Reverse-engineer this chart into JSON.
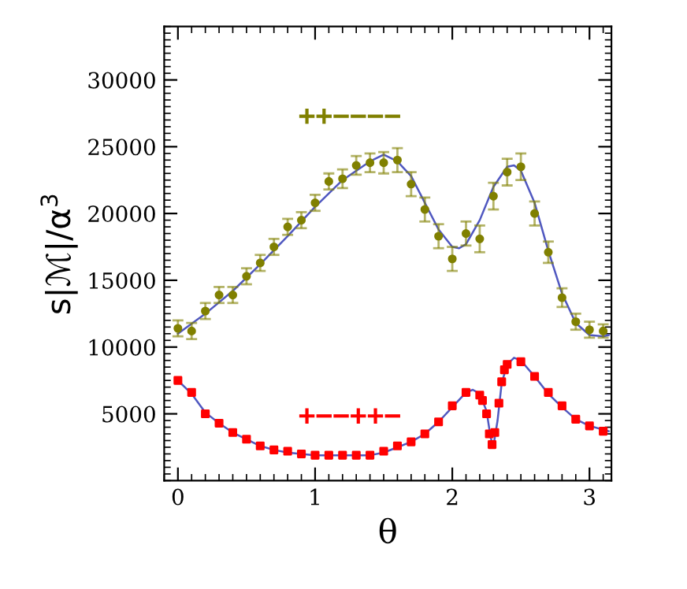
{
  "chart_data": {
    "type": "scatter",
    "xlabel": "θ",
    "ylabel": "s|ℳ|/α$^{3}$",
    "xlim": [
      -0.1,
      3.16
    ],
    "xticks": [
      0,
      1,
      2,
      3
    ],
    "ylim": [
      0,
      34000
    ],
    "yticks": [
      5000,
      10000,
      15000,
      20000,
      25000,
      30000
    ],
    "grid": false,
    "legend": false,
    "annotations": [
      "++−−−−",
      "+−−++−"
    ],
    "series": [
      {
        "color": "#808000",
        "marker": "circle",
        "x": [
          0,
          0.1,
          0.2,
          0.3,
          0.4,
          0.5,
          0.6,
          0.7,
          0.8,
          0.9,
          1.0,
          1.1,
          1.2,
          1.3,
          1.4,
          1.5,
          1.6,
          1.7,
          1.8,
          1.9,
          2.0,
          2.1,
          2.2,
          2.3,
          2.4,
          2.5,
          2.6,
          2.7,
          2.8,
          2.9,
          3.0,
          3.1
        ],
        "values": [
          11400,
          11200,
          12700,
          13900,
          13900,
          15300,
          16300,
          17500,
          19000,
          19500,
          20800,
          22400,
          22600,
          23600,
          23800,
          23800,
          24000,
          22200,
          20300,
          18300,
          16600,
          18500,
          18100,
          21300,
          23100,
          23500,
          20000,
          17100,
          13700,
          11900,
          11300,
          11200
        ],
        "errors": [
          600,
          600,
          600,
          600,
          600,
          600,
          600,
          600,
          600,
          600,
          600,
          600,
          700,
          700,
          700,
          800,
          900,
          900,
          900,
          900,
          900,
          900,
          1000,
          1000,
          1000,
          1000,
          900,
          800,
          700,
          600,
          600,
          500
        ]
      },
      {
        "color": "#ff0000",
        "marker": "square",
        "x": [
          0,
          0.1,
          0.2,
          0.3,
          0.4,
          0.5,
          0.6,
          0.7,
          0.8,
          0.9,
          1.0,
          1.1,
          1.2,
          1.3,
          1.4,
          1.5,
          1.6,
          1.7,
          1.8,
          1.9,
          2.0,
          2.1,
          2.2,
          2.22,
          2.25,
          2.27,
          2.29,
          2.31,
          2.34,
          2.36,
          2.38,
          2.4,
          2.5,
          2.6,
          2.7,
          2.8,
          2.9,
          3.0,
          3.1
        ],
        "values": [
          7500,
          6600,
          5000,
          4300,
          3600,
          3100,
          2600,
          2300,
          2200,
          2000,
          1900,
          1900,
          1900,
          1900,
          1900,
          2200,
          2600,
          2900,
          3500,
          4400,
          5600,
          6600,
          6400,
          6000,
          5000,
          3500,
          2700,
          3600,
          5800,
          7400,
          8300,
          8700,
          8900,
          7800,
          6600,
          5600,
          4600,
          4100,
          3700
        ]
      },
      {
        "type": "line",
        "color": "#5058c0",
        "marker": "none",
        "x": [
          0,
          0.2,
          0.4,
          0.6,
          0.8,
          1.0,
          1.2,
          1.4,
          1.5,
          1.6,
          1.7,
          1.8,
          1.9,
          2.0,
          2.05,
          2.1,
          2.2,
          2.3,
          2.4,
          2.45,
          2.5,
          2.6,
          2.7,
          2.8,
          2.9,
          3.0,
          3.1,
          3.14
        ],
        "values": [
          11000,
          12500,
          14200,
          16200,
          18300,
          20500,
          22500,
          23900,
          24400,
          23900,
          22800,
          20800,
          18800,
          17500,
          17400,
          17700,
          19500,
          22000,
          23500,
          23600,
          23200,
          20800,
          17200,
          14000,
          11800,
          10900,
          10800,
          10900
        ]
      },
      {
        "type": "line",
        "color": "#5058c0",
        "marker": "none",
        "x": [
          0,
          0.1,
          0.2,
          0.3,
          0.4,
          0.5,
          0.6,
          0.7,
          0.8,
          0.9,
          1.0,
          1.2,
          1.4,
          1.5,
          1.6,
          1.7,
          1.8,
          1.9,
          2.0,
          2.1,
          2.15,
          2.2,
          2.25,
          2.28,
          2.3,
          2.33,
          2.36,
          2.4,
          2.45,
          2.5,
          2.6,
          2.7,
          2.8,
          2.9,
          3.0,
          3.14
        ],
        "values": [
          7500,
          6500,
          5100,
          4300,
          3600,
          3100,
          2600,
          2300,
          2100,
          2000,
          1900,
          1900,
          1900,
          2100,
          2500,
          2900,
          3500,
          4400,
          5500,
          6600,
          6800,
          6500,
          5200,
          3200,
          2600,
          4500,
          7300,
          8700,
          9200,
          9000,
          7800,
          6500,
          5500,
          4600,
          4100,
          3700
        ]
      }
    ]
  }
}
